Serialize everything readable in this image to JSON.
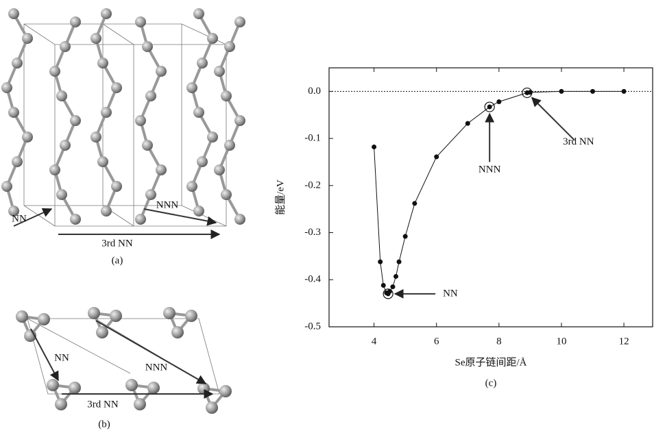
{
  "chart_data": {
    "type": "line",
    "xlabel": "Se原子链间距/Å",
    "ylabel": "能量/eV",
    "caption": "(c)",
    "x": [
      4.0,
      4.2,
      4.3,
      4.4,
      4.45,
      4.5,
      4.6,
      4.7,
      4.8,
      5.0,
      5.3,
      6.0,
      7.0,
      7.7,
      8.0,
      8.9,
      9.0,
      10,
      11,
      12
    ],
    "series": [
      {
        "color": "#111111",
        "values": [
          -0.118,
          -0.362,
          -0.412,
          -0.428,
          -0.43,
          -0.425,
          -0.415,
          -0.393,
          -0.362,
          -0.308,
          -0.238,
          -0.139,
          -0.068,
          -0.033,
          -0.022,
          -0.003,
          -0.002,
          0,
          0,
          0
        ]
      }
    ],
    "xlim": [
      2.56,
      12.92
    ],
    "ylim": [
      -0.5,
      0.05
    ],
    "xticks": [
      4,
      6,
      8,
      10,
      12
    ],
    "yticks": [
      {
        "value": 0,
        "label": "0.0"
      },
      -0.1,
      -0.2,
      -0.3,
      -0.4,
      -0.5
    ],
    "annotations": [
      "NN",
      "NNN",
      "3rd NN"
    ]
  },
  "structures": [
    {
      "caption": "(a)",
      "labels": [
        "NN",
        "NNN",
        "3rd NN"
      ]
    },
    {
      "caption": "(b)",
      "labels": [
        "NN",
        "NNN",
        "3rd NN"
      ]
    }
  ]
}
